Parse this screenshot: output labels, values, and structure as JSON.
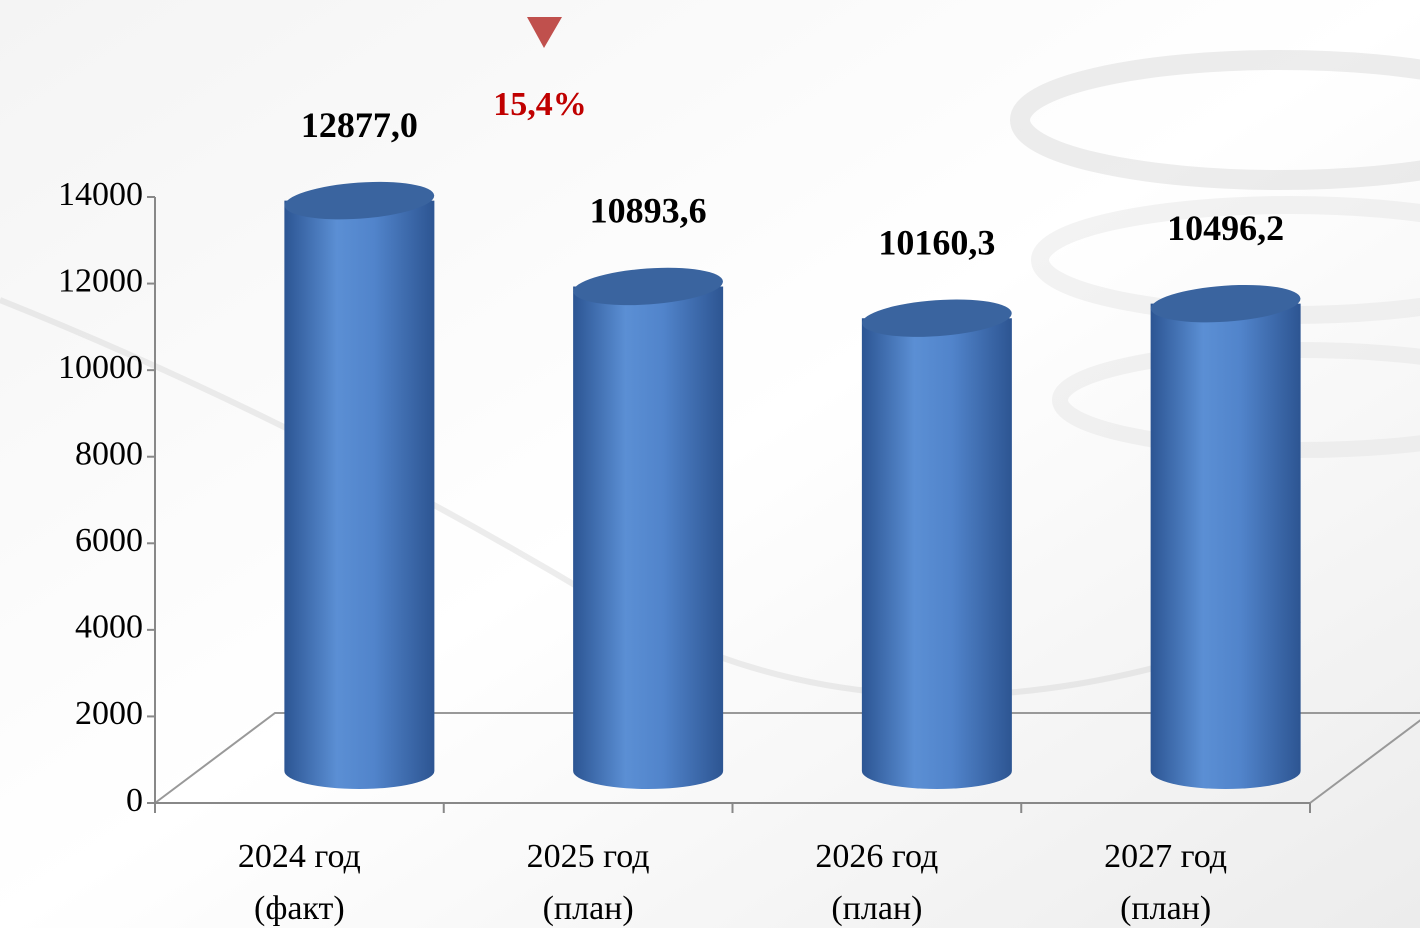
{
  "chart_data": {
    "type": "bar",
    "categories": [
      "2024 год\n(факт)",
      "2025 год\n(план)",
      "2026 год\n(план)",
      "2027 год\n(план)"
    ],
    "values": [
      12877.0,
      10893.6,
      10160.3,
      10496.2
    ],
    "value_labels": [
      "12877,0",
      "10893,6",
      "10160,3",
      "10496,2"
    ],
    "color": "#4f81bd",
    "ylim": [
      0,
      14000
    ],
    "yticks": [
      0,
      2000,
      4000,
      6000,
      8000,
      10000,
      12000,
      14000
    ],
    "grid": false,
    "annotation": "15,4%"
  }
}
